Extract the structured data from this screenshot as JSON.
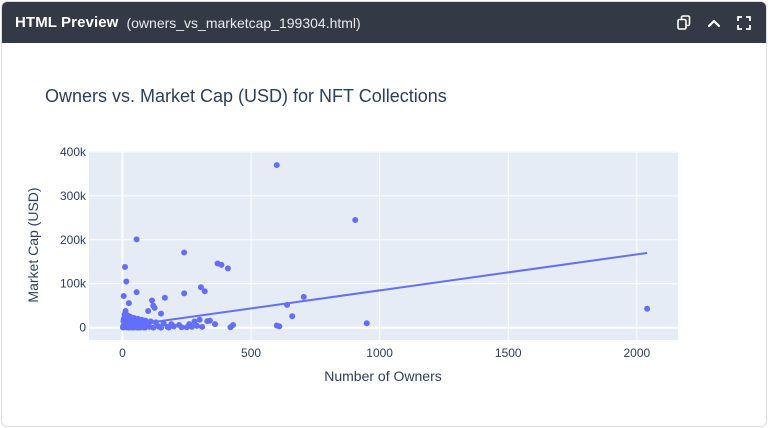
{
  "window": {
    "app_title": "HTML Preview",
    "file_name": "(owners_vs_marketcap_199304.html)",
    "icons": [
      "copy-icon",
      "chevron-up-icon",
      "expand-icon"
    ]
  },
  "colors": {
    "titlebar": "#343a45",
    "plot_bg": "#e5ecf6",
    "marker": "#636efa"
  },
  "chart_data": {
    "type": "scatter",
    "title": "Owners vs. Market Cap (USD) for NFT Collections",
    "xlabel": "Number of Owners",
    "ylabel": "Market Cap (USD)",
    "xlim": [
      -130,
      2160
    ],
    "ylim": [
      -28000,
      402000
    ],
    "xticks": [
      0,
      500,
      1000,
      1500,
      2000
    ],
    "xtick_labels": [
      "0",
      "500",
      "1000",
      "1500",
      "2000"
    ],
    "yticks": [
      0,
      100000,
      200000,
      300000,
      400000
    ],
    "ytick_labels": [
      "0",
      "100k",
      "200k",
      "300k",
      "400k"
    ],
    "grid": true,
    "trendline": {
      "x": [
        0,
        2040
      ],
      "y": [
        3000,
        170000
      ]
    },
    "points": {
      "x": [
        600,
        905,
        55,
        240,
        370,
        385,
        410,
        10,
        15,
        305,
        320,
        240,
        55,
        115,
        120,
        165,
        25,
        125,
        100,
        150,
        705,
        640,
        660,
        2040,
        950,
        600,
        610,
        5,
        8,
        12,
        20,
        30,
        45,
        60,
        75,
        90,
        110,
        130,
        160,
        190,
        220,
        260,
        280,
        300,
        340,
        360,
        430,
        4,
        6,
        9,
        14,
        18,
        22,
        28,
        35,
        40,
        50,
        65,
        80,
        95,
        105,
        140,
        175,
        200,
        230,
        270,
        290,
        330,
        3,
        7,
        11,
        16,
        24,
        33,
        42,
        58,
        70,
        85,
        120,
        180,
        250,
        310,
        420,
        5,
        10,
        20,
        35,
        55,
        75,
        2,
        4,
        8,
        13,
        17,
        26,
        38,
        48,
        62,
        88,
        150
      ],
      "y": [
        370000,
        245000,
        201000,
        171000,
        146000,
        143000,
        135000,
        138000,
        105000,
        92000,
        83000,
        78000,
        81000,
        62000,
        50000,
        68000,
        56000,
        45000,
        38000,
        32000,
        70000,
        52000,
        26000,
        43000,
        10000,
        5000,
        3000,
        72000,
        30000,
        38000,
        28000,
        25000,
        22000,
        20000,
        18000,
        16000,
        14000,
        12000,
        10000,
        8000,
        6000,
        8000,
        14000,
        18000,
        16000,
        8000,
        6000,
        15000,
        12000,
        10000,
        9000,
        8000,
        7000,
        6000,
        5000,
        6000,
        4000,
        5000,
        3000,
        4000,
        2000,
        3000,
        2000,
        3000,
        1000,
        2000,
        4000,
        15000,
        3000,
        2000,
        1500,
        1000,
        800,
        600,
        500,
        400,
        300,
        200,
        100,
        500,
        1000,
        2000,
        1000,
        20000,
        22000,
        18000,
        15000,
        12000,
        10000,
        500,
        1000,
        1500,
        2000,
        1000,
        500,
        800,
        600,
        400,
        300,
        200
      ]
    }
  }
}
